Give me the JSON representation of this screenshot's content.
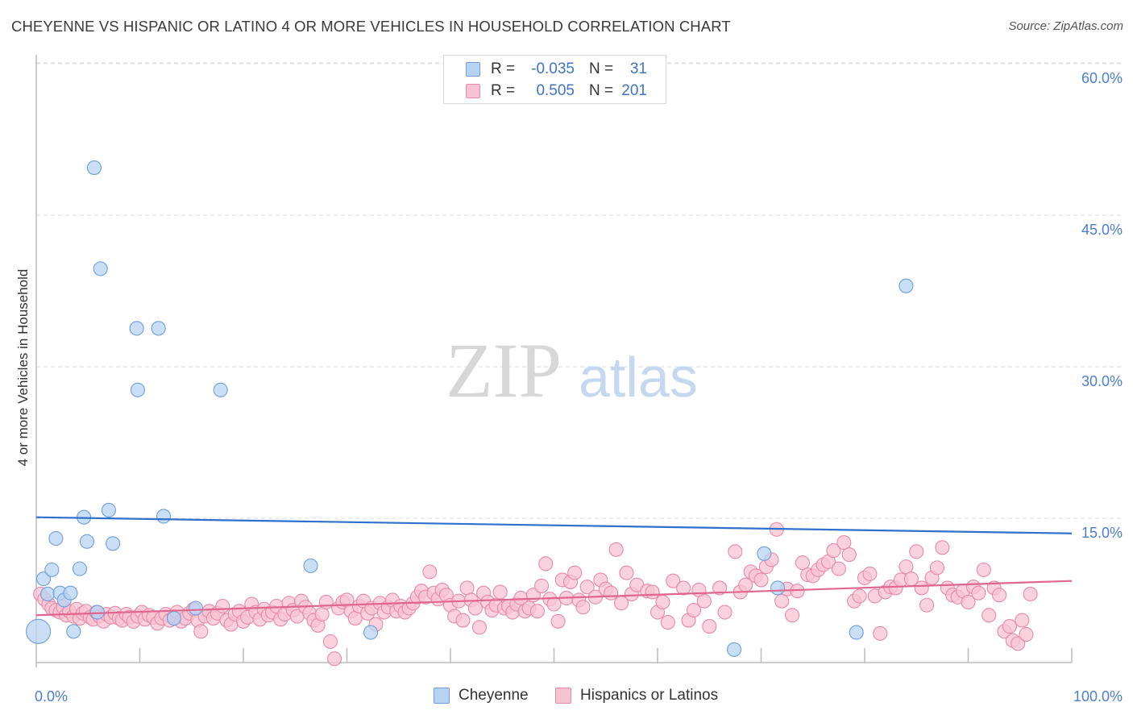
{
  "title": "CHEYENNE VS HISPANIC OR LATINO 4 OR MORE VEHICLES IN HOUSEHOLD CORRELATION CHART",
  "source": "Source: ZipAtlas.com",
  "watermark": {
    "zip": "ZIP",
    "atlas": "atlas"
  },
  "stats": {
    "r_label": "R =",
    "n_label": "N =",
    "rows": [
      {
        "r": "-0.035",
        "n": "31"
      },
      {
        "r": "0.505",
        "n": "201"
      }
    ]
  },
  "legend": [
    {
      "label": "Cheyenne"
    },
    {
      "label": "Hispanics or Latinos"
    }
  ],
  "colors": {
    "blue_fill": "#b8d3f2",
    "blue_stroke": "#6f9fda",
    "blue_line": "#2f6fce",
    "pink_fill": "#f7c3d3",
    "pink_stroke": "#e88aa8",
    "pink_line": "#e0668f",
    "grid": "#dddddd",
    "axis": "#bbbbbb",
    "tick_text": "#4a7fd0"
  },
  "chart_data": {
    "type": "scatter",
    "title": "CHEYENNE VS HISPANIC OR LATINO 4 OR MORE VEHICLES IN HOUSEHOLD CORRELATION CHART",
    "xlabel": "",
    "ylabel": "4 or more Vehicles in Household",
    "xlim": [
      0,
      100
    ],
    "ylim": [
      0,
      60
    ],
    "x_tick_labels": [
      "0.0%",
      "100.0%"
    ],
    "y_ticks": [
      15,
      30,
      45,
      60
    ],
    "y_tick_labels": [
      "15.0%",
      "30.0%",
      "45.0%",
      "60.0%"
    ],
    "grid": true,
    "series": [
      {
        "name": "Cheyenne",
        "r": -0.035,
        "n": 31,
        "trend": [
          [
            0,
            16.3
          ],
          [
            100,
            14.7
          ]
        ],
        "points": [
          [
            0.2,
            5.0
          ],
          [
            0.7,
            10.2
          ],
          [
            1.1,
            8.7
          ],
          [
            1.5,
            11.1
          ],
          [
            1.9,
            14.2
          ],
          [
            2.3,
            8.8
          ],
          [
            2.7,
            8.1
          ],
          [
            3.3,
            8.8
          ],
          [
            3.6,
            5.0
          ],
          [
            4.2,
            11.2
          ],
          [
            4.6,
            16.3
          ],
          [
            4.9,
            13.9
          ],
          [
            5.6,
            50.9
          ],
          [
            5.9,
            6.9
          ],
          [
            6.2,
            40.9
          ],
          [
            7.0,
            17.0
          ],
          [
            7.4,
            13.7
          ],
          [
            9.7,
            35.0
          ],
          [
            9.8,
            28.9
          ],
          [
            11.8,
            35.0
          ],
          [
            12.3,
            16.4
          ],
          [
            13.3,
            6.3
          ],
          [
            15.4,
            7.3
          ],
          [
            17.8,
            28.9
          ],
          [
            26.5,
            11.5
          ],
          [
            32.3,
            4.9
          ],
          [
            67.4,
            3.2
          ],
          [
            70.3,
            12.7
          ],
          [
            71.6,
            9.3
          ],
          [
            79.2,
            4.9
          ],
          [
            84.0,
            39.2
          ]
        ],
        "sizes": {
          "0": 30
        }
      },
      {
        "name": "Hispanics or Latinos",
        "r": 0.505,
        "n": 201,
        "trend": [
          [
            0,
            6.6
          ],
          [
            100,
            10.0
          ]
        ],
        "points": [
          [
            0.4,
            8.7
          ],
          [
            0.8,
            8.2
          ],
          [
            1.2,
            7.7
          ],
          [
            1.5,
            7.3
          ],
          [
            1.9,
            7.1
          ],
          [
            2.3,
            6.9
          ],
          [
            2.6,
            7.4
          ],
          [
            2.9,
            6.6
          ],
          [
            3.2,
            7.0
          ],
          [
            3.6,
            6.5
          ],
          [
            3.9,
            7.2
          ],
          [
            4.2,
            6.3
          ],
          [
            4.5,
            6.8
          ],
          [
            4.8,
            7.0
          ],
          [
            5.2,
            6.4
          ],
          [
            5.5,
            6.2
          ],
          [
            5.8,
            6.9
          ],
          [
            6.1,
            6.5
          ],
          [
            6.5,
            6.0
          ],
          [
            6.8,
            6.7
          ],
          [
            7.2,
            6.4
          ],
          [
            7.6,
            6.8
          ],
          [
            8.0,
            6.3
          ],
          [
            8.3,
            6.1
          ],
          [
            8.7,
            6.7
          ],
          [
            9.0,
            6.4
          ],
          [
            9.4,
            6.0
          ],
          [
            9.8,
            6.5
          ],
          [
            10.2,
            6.9
          ],
          [
            10.5,
            6.2
          ],
          [
            10.9,
            6.6
          ],
          [
            11.3,
            6.4
          ],
          [
            11.7,
            5.8
          ],
          [
            12.1,
            6.3
          ],
          [
            12.5,
            6.7
          ],
          [
            12.9,
            6.1
          ],
          [
            13.3,
            6.5
          ],
          [
            13.6,
            6.9
          ],
          [
            14.0,
            6.0
          ],
          [
            14.4,
            6.3
          ],
          [
            14.8,
            6.8
          ],
          [
            15.2,
            7.2
          ],
          [
            15.6,
            6.1
          ],
          [
            15.9,
            5.0
          ],
          [
            16.3,
            6.5
          ],
          [
            16.7,
            7.0
          ],
          [
            17.1,
            6.3
          ],
          [
            17.5,
            6.8
          ],
          [
            18.0,
            7.5
          ],
          [
            18.4,
            6.1
          ],
          [
            18.8,
            5.7
          ],
          [
            19.2,
            6.7
          ],
          [
            19.6,
            7.0
          ],
          [
            20.0,
            6.0
          ],
          [
            20.4,
            6.4
          ],
          [
            20.8,
            7.7
          ],
          [
            21.2,
            6.9
          ],
          [
            21.6,
            6.2
          ],
          [
            22.0,
            7.2
          ],
          [
            22.4,
            6.6
          ],
          [
            22.8,
            6.9
          ],
          [
            23.2,
            7.5
          ],
          [
            23.6,
            6.2
          ],
          [
            24.0,
            6.7
          ],
          [
            24.4,
            7.8
          ],
          [
            24.8,
            7.1
          ],
          [
            25.2,
            6.5
          ],
          [
            25.6,
            8.0
          ],
          [
            26.0,
            7.4
          ],
          [
            26.4,
            6.8
          ],
          [
            26.8,
            6.1
          ],
          [
            27.2,
            5.6
          ],
          [
            27.6,
            6.7
          ],
          [
            28.0,
            7.9
          ],
          [
            28.4,
            4.0
          ],
          [
            28.8,
            2.3
          ],
          [
            29.2,
            7.3
          ],
          [
            29.6,
            7.9
          ],
          [
            30.0,
            8.1
          ],
          [
            30.4,
            7.0
          ],
          [
            30.8,
            6.3
          ],
          [
            31.2,
            7.5
          ],
          [
            31.6,
            8.0
          ],
          [
            32.0,
            6.8
          ],
          [
            32.4,
            7.3
          ],
          [
            32.8,
            5.7
          ],
          [
            33.2,
            7.8
          ],
          [
            33.6,
            6.9
          ],
          [
            34.0,
            7.4
          ],
          [
            34.4,
            8.1
          ],
          [
            34.8,
            7.0
          ],
          [
            35.2,
            7.5
          ],
          [
            35.6,
            6.9
          ],
          [
            36.0,
            7.3
          ],
          [
            36.4,
            7.8
          ],
          [
            36.8,
            8.4
          ],
          [
            37.2,
            9.0
          ],
          [
            37.6,
            8.4
          ],
          [
            38.0,
            10.9
          ],
          [
            38.4,
            8.8
          ],
          [
            38.8,
            8.2
          ],
          [
            39.2,
            9.1
          ],
          [
            39.6,
            8.6
          ],
          [
            40.0,
            7.6
          ],
          [
            40.4,
            6.5
          ],
          [
            40.8,
            8.0
          ],
          [
            41.2,
            6.1
          ],
          [
            41.6,
            9.3
          ],
          [
            42.0,
            8.1
          ],
          [
            42.4,
            7.3
          ],
          [
            42.8,
            5.4
          ],
          [
            43.2,
            8.8
          ],
          [
            43.6,
            7.9
          ],
          [
            44.0,
            7.1
          ],
          [
            44.4,
            7.6
          ],
          [
            44.8,
            8.9
          ],
          [
            45.2,
            7.3
          ],
          [
            45.6,
            7.5
          ],
          [
            46.0,
            6.9
          ],
          [
            46.4,
            7.7
          ],
          [
            46.8,
            8.3
          ],
          [
            47.2,
            7.0
          ],
          [
            47.6,
            7.3
          ],
          [
            48.0,
            8.6
          ],
          [
            48.4,
            7.0
          ],
          [
            48.8,
            9.5
          ],
          [
            49.2,
            11.7
          ],
          [
            49.6,
            8.2
          ],
          [
            50.0,
            7.7
          ],
          [
            50.4,
            6.0
          ],
          [
            50.8,
            10.1
          ],
          [
            51.2,
            8.3
          ],
          [
            51.6,
            9.9
          ],
          [
            52.0,
            10.8
          ],
          [
            52.4,
            8.1
          ],
          [
            52.8,
            7.4
          ],
          [
            53.2,
            9.4
          ],
          [
            54.0,
            8.4
          ],
          [
            54.5,
            10.1
          ],
          [
            55.0,
            9.2
          ],
          [
            55.5,
            8.8
          ],
          [
            56.0,
            13.1
          ],
          [
            56.5,
            7.8
          ],
          [
            57.0,
            10.8
          ],
          [
            57.5,
            8.7
          ],
          [
            58.0,
            9.6
          ],
          [
            59.0,
            9.0
          ],
          [
            59.5,
            8.9
          ],
          [
            60.0,
            6.9
          ],
          [
            60.5,
            7.9
          ],
          [
            61.0,
            5.9
          ],
          [
            61.5,
            10.0
          ],
          [
            62.5,
            9.3
          ],
          [
            63.0,
            6.1
          ],
          [
            63.5,
            7.1
          ],
          [
            64.0,
            9.1
          ],
          [
            64.5,
            8.0
          ],
          [
            65.0,
            5.5
          ],
          [
            66.0,
            9.3
          ],
          [
            66.5,
            6.9
          ],
          [
            67.5,
            12.9
          ],
          [
            68.0,
            8.9
          ],
          [
            68.5,
            9.6
          ],
          [
            69.0,
            10.9
          ],
          [
            69.5,
            10.5
          ],
          [
            70.0,
            10.1
          ],
          [
            70.5,
            11.4
          ],
          [
            71.0,
            12.1
          ],
          [
            71.5,
            15.1
          ],
          [
            72.0,
            8.0
          ],
          [
            72.5,
            9.2
          ],
          [
            73.0,
            6.6
          ],
          [
            73.5,
            9.0
          ],
          [
            74.0,
            11.8
          ],
          [
            74.5,
            10.6
          ],
          [
            75.0,
            10.5
          ],
          [
            75.5,
            11.1
          ],
          [
            76.0,
            11.6
          ],
          [
            76.5,
            11.9
          ],
          [
            77.0,
            13.0
          ],
          [
            77.5,
            11.2
          ],
          [
            78.0,
            13.8
          ],
          [
            78.5,
            12.6
          ],
          [
            79.0,
            8.0
          ],
          [
            79.5,
            8.5
          ],
          [
            80.0,
            10.3
          ],
          [
            80.5,
            10.7
          ],
          [
            81.0,
            8.5
          ],
          [
            81.5,
            4.8
          ],
          [
            82.0,
            8.9
          ],
          [
            82.5,
            9.4
          ],
          [
            83.0,
            9.3
          ],
          [
            83.5,
            10.1
          ],
          [
            84.0,
            11.4
          ],
          [
            84.5,
            10.2
          ],
          [
            85.0,
            12.9
          ],
          [
            85.5,
            9.3
          ],
          [
            86.0,
            7.6
          ],
          [
            86.5,
            10.3
          ],
          [
            87.0,
            11.3
          ],
          [
            87.5,
            13.3
          ],
          [
            88.0,
            9.3
          ],
          [
            88.5,
            8.6
          ],
          [
            89.0,
            8.4
          ],
          [
            89.5,
            9.0
          ],
          [
            90.0,
            7.9
          ],
          [
            90.5,
            9.4
          ],
          [
            91.0,
            8.8
          ],
          [
            91.5,
            11.1
          ],
          [
            92.0,
            6.6
          ],
          [
            92.5,
            9.3
          ],
          [
            93.0,
            8.6
          ],
          [
            93.5,
            5.0
          ],
          [
            94.0,
            5.5
          ],
          [
            94.3,
            4.1
          ],
          [
            94.8,
            3.8
          ],
          [
            95.2,
            6.1
          ],
          [
            95.6,
            4.7
          ],
          [
            96.0,
            8.7
          ]
        ]
      }
    ]
  }
}
